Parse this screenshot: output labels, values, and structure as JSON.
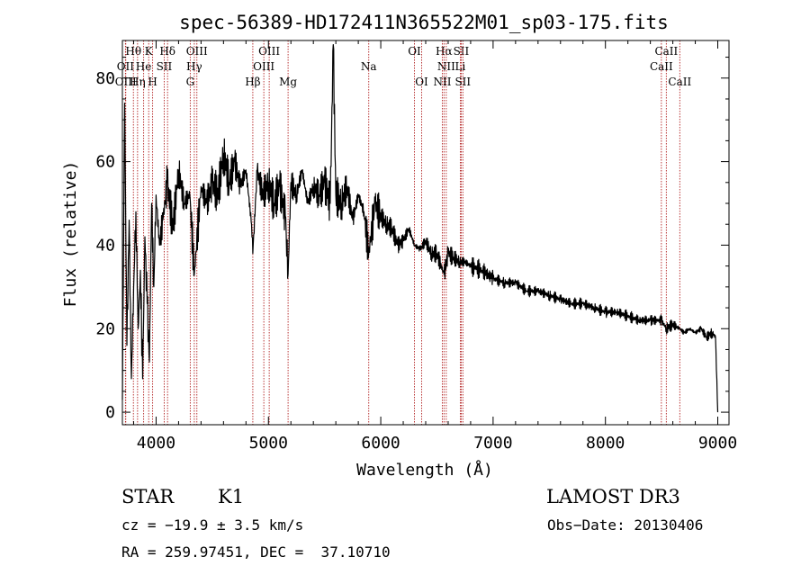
{
  "chart_data": {
    "type": "line",
    "title": "spec-56389-HD172411N365522M01_sp03-175.fits",
    "xlabel": "Wavelength (Å)",
    "ylabel": "Flux (relative)",
    "xlim": [
      3700,
      9100
    ],
    "ylim": [
      -3,
      89
    ],
    "xticks": [
      4000,
      5000,
      6000,
      7000,
      8000,
      9000
    ],
    "yticks": [
      0,
      20,
      40,
      60,
      80
    ],
    "grid": false,
    "legend": "none",
    "line_color": "#000000",
    "marker_color": "#b22222",
    "series": [
      {
        "x": [
          3700,
          3720,
          3740,
          3760,
          3780,
          3800,
          3820,
          3840,
          3860,
          3880,
          3900,
          3920,
          3940,
          3960,
          3980,
          4000,
          4030,
          4060,
          4100,
          4150,
          4200,
          4250,
          4300,
          4340,
          4400,
          4450,
          4500,
          4550,
          4600,
          4650,
          4700,
          4750,
          4800,
          4850,
          4861,
          4900,
          4950,
          5000,
          5050,
          5100,
          5150,
          5175,
          5200,
          5250,
          5300,
          5350,
          5400,
          5450,
          5500,
          5550,
          5577,
          5600,
          5650,
          5700,
          5750,
          5800,
          5850,
          5893,
          5950,
          6000,
          6050,
          6100,
          6150,
          6200,
          6250,
          6300,
          6350,
          6400,
          6450,
          6500,
          6563,
          6600,
          6650,
          6700,
          6750,
          6800,
          6900,
          7000,
          7100,
          7200,
          7300,
          7400,
          7500,
          7600,
          7700,
          7800,
          7900,
          8000,
          8100,
          8200,
          8300,
          8400,
          8498,
          8542,
          8600,
          8662,
          8700,
          8750,
          8800,
          8850,
          8900,
          8950,
          8980,
          9000
        ],
        "y": [
          3,
          74,
          16,
          46,
          8,
          30,
          48,
          20,
          34,
          8,
          42,
          26,
          12,
          50,
          30,
          52,
          40,
          46,
          55,
          44,
          58,
          50,
          52,
          33,
          54,
          50,
          55,
          52,
          62,
          55,
          60,
          54,
          58,
          45,
          38,
          58,
          52,
          55,
          50,
          54,
          47,
          33,
          55,
          52,
          58,
          50,
          54,
          52,
          55,
          50,
          88,
          52,
          50,
          54,
          46,
          52,
          48,
          38,
          50,
          47,
          45,
          44,
          40,
          41,
          44,
          40,
          39,
          41,
          38,
          38,
          33,
          38,
          37,
          36,
          36,
          35,
          34,
          32,
          31,
          31,
          29,
          29,
          28,
          27,
          26,
          26,
          25,
          24,
          24,
          23,
          22,
          22,
          22,
          20,
          21,
          20,
          19,
          20,
          19,
          20,
          18,
          19,
          18,
          0
        ]
      }
    ],
    "line_markers": [
      {
        "label": "Hθ",
        "x": 3798,
        "row": 1
      },
      {
        "label": "OII",
        "x": 3727,
        "row": 2
      },
      {
        "label": "OIII",
        "x": 3730,
        "row": 3
      },
      {
        "label": "Hη",
        "x": 3835,
        "row": 3
      },
      {
        "label": "He",
        "x": 3889,
        "row": 2
      },
      {
        "label": "K",
        "x": 3934,
        "row": 1
      },
      {
        "label": "H",
        "x": 3969,
        "row": 3
      },
      {
        "label": "SII",
        "x": 4072,
        "row": 2
      },
      {
        "label": "Hδ",
        "x": 4102,
        "row": 1
      },
      {
        "label": "OIII",
        "x": 4363,
        "row": 1
      },
      {
        "label": "Hγ",
        "x": 4340,
        "row": 2
      },
      {
        "label": "G",
        "x": 4304,
        "row": 3
      },
      {
        "label": "Hβ",
        "x": 4861,
        "row": 3
      },
      {
        "label": "OIII",
        "x": 5007,
        "row": 1
      },
      {
        "label": "OIII",
        "x": 4959,
        "row": 2
      },
      {
        "label": "Mg",
        "x": 5175,
        "row": 3
      },
      {
        "label": "Na",
        "x": 5893,
        "row": 2
      },
      {
        "label": "OI",
        "x": 6300,
        "row": 1
      },
      {
        "label": "OI",
        "x": 6364,
        "row": 3
      },
      {
        "label": "Hα",
        "x": 6563,
        "row": 1
      },
      {
        "label": "NII",
        "x": 6583,
        "row": 2
      },
      {
        "label": "NII",
        "x": 6548,
        "row": 3
      },
      {
        "label": "SII",
        "x": 6716,
        "row": 1
      },
      {
        "label": "Li",
        "x": 6708,
        "row": 2
      },
      {
        "label": "SII",
        "x": 6731,
        "row": 3
      },
      {
        "label": "CaII",
        "x": 8542,
        "row": 1
      },
      {
        "label": "CaII",
        "x": 8498,
        "row": 2
      },
      {
        "label": "CaII",
        "x": 8662,
        "row": 3
      }
    ]
  },
  "info": {
    "class": "STAR",
    "subclass": "K1",
    "survey": "LAMOST DR3",
    "cz": "cz = −19.9 ± 3.5 km/s",
    "obs_date": "Obs−Date: 20130406",
    "coords": "RA = 259.97451, DEC =  37.10710"
  }
}
